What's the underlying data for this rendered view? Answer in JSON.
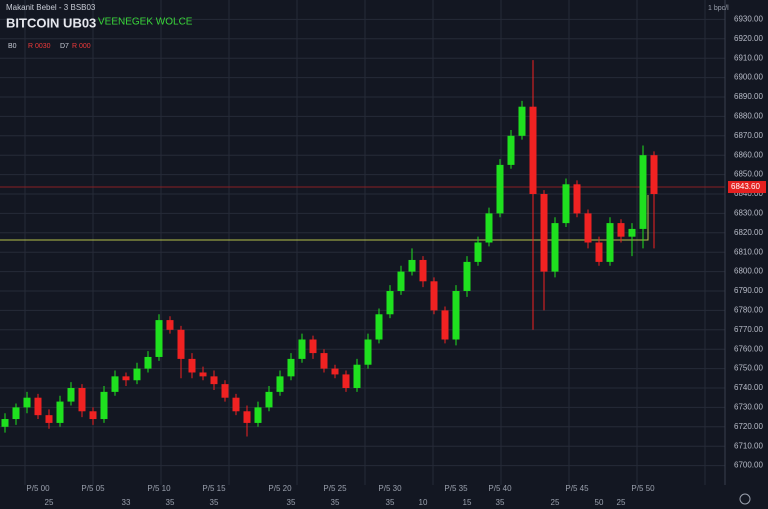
{
  "header": {
    "subtitle": "Makanit Bebel  -  3  BSB03",
    "title": "BITCOIN UB03",
    "indicator": "VEENEGEK WOLCE",
    "stats": [
      "B0",
      "R 0030",
      "D7",
      "R 000"
    ],
    "corner": "1 bpc/l"
  },
  "chart_data": {
    "type": "candlestick",
    "up_color": "#1fe01f",
    "down_color": "#f02222",
    "grid": true,
    "ylim": [
      6690,
      6940
    ],
    "yticks": [
      {
        "value": 6930,
        "label": "6930.00"
      },
      {
        "value": 6920,
        "label": "6920.00"
      },
      {
        "value": 6910,
        "label": "6910.00"
      },
      {
        "value": 6900,
        "label": "6900.00"
      },
      {
        "value": 6890,
        "label": "6890.00"
      },
      {
        "value": 6880,
        "label": "6880.00"
      },
      {
        "value": 6870,
        "label": "6870.00"
      },
      {
        "value": 6860,
        "label": "6860.00"
      },
      {
        "value": 6850,
        "label": "6850.00"
      },
      {
        "value": 6840,
        "label": "6840.00"
      },
      {
        "value": 6830,
        "label": "6830.00"
      },
      {
        "value": 6820,
        "label": "6820.00"
      },
      {
        "value": 6810,
        "label": "6810.00"
      },
      {
        "value": 6800,
        "label": "6800.00"
      },
      {
        "value": 6790,
        "label": "6790.00"
      },
      {
        "value": 6780,
        "label": "6780.00"
      },
      {
        "value": 6770,
        "label": "6770.00"
      },
      {
        "value": 6760,
        "label": "6760.00"
      },
      {
        "value": 6750,
        "label": "6750.00"
      },
      {
        "value": 6740,
        "label": "6740.00"
      },
      {
        "value": 6730,
        "label": "6730.00"
      },
      {
        "value": 6720,
        "label": "6720.00"
      },
      {
        "value": 6710,
        "label": "6710.00"
      },
      {
        "value": 6700,
        "label": "6700.00"
      }
    ],
    "current_price": {
      "value": 6843.6,
      "label": "6843.60"
    },
    "average_line": 6816.3,
    "categories": [
      null,
      null,
      null,
      "P/5 00",
      null,
      null,
      null,
      null,
      "P/5 05",
      null,
      null,
      null,
      null,
      null,
      "P/5 10",
      null,
      null,
      null,
      null,
      "P/5 15",
      null,
      null,
      null,
      null,
      null,
      "P/5 20",
      null,
      null,
      null,
      null,
      "P/5 25",
      null,
      null,
      null,
      null,
      "P/5 30",
      null,
      null,
      null,
      null,
      null,
      "P/5 35",
      null,
      null,
      null,
      "P/5 40",
      null,
      null,
      null,
      null,
      null,
      null,
      "P/5 45",
      null,
      null,
      null,
      null,
      null,
      "P/5 50",
      null
    ],
    "sublabels": [
      null,
      null,
      null,
      null,
      "25",
      null,
      null,
      null,
      null,
      null,
      null,
      "33",
      null,
      null,
      null,
      "35",
      null,
      null,
      null,
      "35",
      null,
      null,
      null,
      null,
      null,
      null,
      "35",
      null,
      null,
      null,
      "35",
      null,
      null,
      null,
      null,
      "35",
      null,
      null,
      "10",
      null,
      null,
      null,
      "15",
      null,
      null,
      "35",
      null,
      null,
      null,
      null,
      "25",
      null,
      null,
      null,
      "50",
      null,
      "25",
      null,
      null,
      null
    ],
    "open": [
      6720,
      6724,
      6730,
      6735,
      6726,
      6722,
      6733,
      6740,
      6728,
      6724,
      6738,
      6746,
      6744,
      6750,
      6756,
      6775,
      6770,
      6755,
      6748,
      6746,
      6742,
      6735,
      6728,
      6722,
      6730,
      6738,
      6746,
      6755,
      6765,
      6758,
      6750,
      6747,
      6740,
      6752,
      6765,
      6778,
      6790,
      6800,
      6806,
      6795,
      6780,
      6765,
      6790,
      6805,
      6815,
      6830,
      6855,
      6870,
      6885,
      6840,
      6800,
      6825,
      6845,
      6830,
      6815,
      6805,
      6825,
      6818,
      6822,
      6860
    ],
    "high": [
      6727,
      6732,
      6738,
      6737,
      6729,
      6736,
      6743,
      6742,
      6730,
      6741,
      6749,
      6748,
      6753,
      6759,
      6778,
      6777,
      6772,
      6758,
      6751,
      6749,
      6744,
      6737,
      6731,
      6733,
      6741,
      6749,
      6758,
      6768,
      6767,
      6760,
      6752,
      6749,
      6755,
      6768,
      6781,
      6793,
      6803,
      6812,
      6808,
      6797,
      6782,
      6793,
      6808,
      6818,
      6833,
      6858,
      6873,
      6888,
      6909,
      6842,
      6828,
      6848,
      6847,
      6832,
      6818,
      6828,
      6827,
      6825,
      6865,
      6862
    ],
    "low": [
      6717,
      6721,
      6727,
      6724,
      6719,
      6720,
      6731,
      6725,
      6721,
      6722,
      6736,
      6741,
      6742,
      6748,
      6754,
      6768,
      6745,
      6745,
      6744,
      6739,
      6733,
      6726,
      6715,
      6720,
      6728,
      6736,
      6744,
      6753,
      6755,
      6748,
      6745,
      6738,
      6738,
      6750,
      6763,
      6776,
      6788,
      6798,
      6792,
      6778,
      6763,
      6762,
      6787,
      6803,
      6813,
      6828,
      6853,
      6868,
      6770,
      6780,
      6797,
      6823,
      6828,
      6812,
      6803,
      6803,
      6815,
      6808,
      6812,
      6812
    ],
    "close": [
      6724,
      6730,
      6735,
      6726,
      6722,
      6733,
      6740,
      6728,
      6724,
      6738,
      6746,
      6744,
      6750,
      6756,
      6775,
      6770,
      6755,
      6748,
      6746,
      6742,
      6735,
      6728,
      6722,
      6730,
      6738,
      6746,
      6755,
      6765,
      6758,
      6750,
      6747,
      6740,
      6752,
      6765,
      6778,
      6790,
      6800,
      6806,
      6795,
      6780,
      6765,
      6790,
      6805,
      6815,
      6830,
      6855,
      6870,
      6885,
      6840,
      6800,
      6825,
      6845,
      6830,
      6815,
      6805,
      6825,
      6818,
      6822,
      6860,
      6840
    ]
  }
}
